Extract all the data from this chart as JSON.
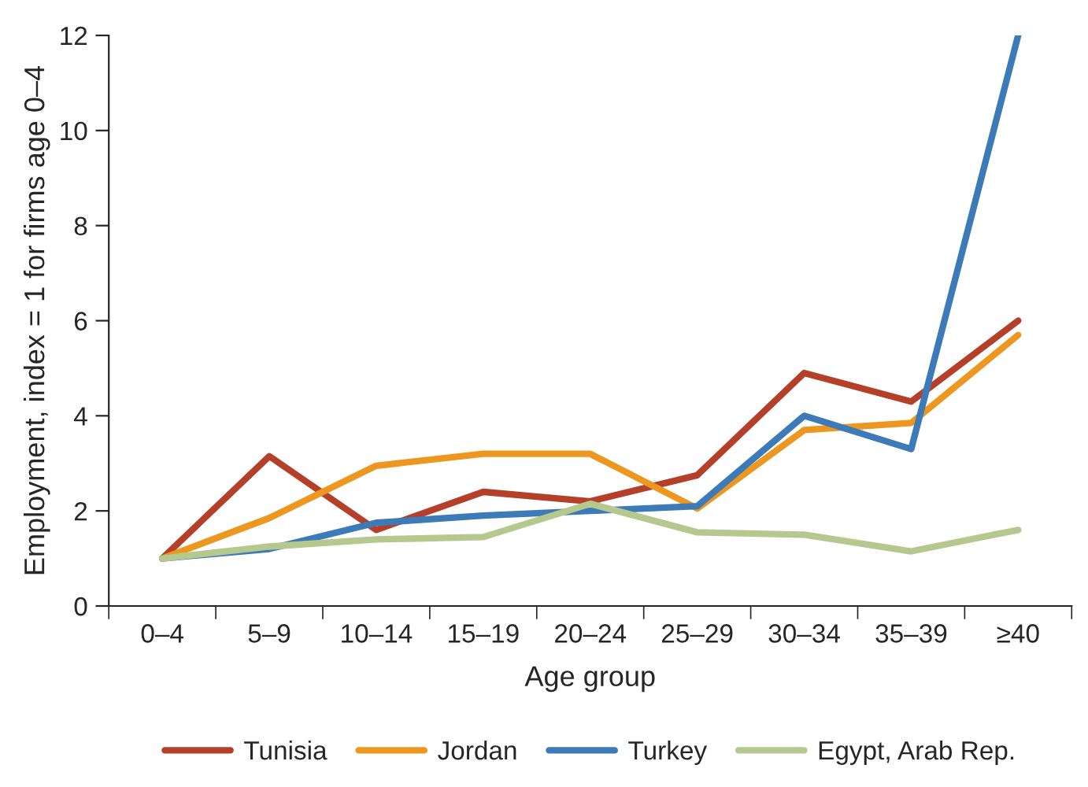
{
  "chart_data": {
    "type": "line",
    "xlabel": "Age group",
    "ylabel": "Employment, index = 1 for firms age 0–4",
    "categories": [
      "0–4",
      "5–9",
      "10–14",
      "15–19",
      "20–24",
      "25–29",
      "30–34",
      "35–39",
      "≥40"
    ],
    "series": [
      {
        "name": "Tunisia",
        "color": "#b5402a",
        "values": [
          1.0,
          3.15,
          1.6,
          2.4,
          2.2,
          2.75,
          4.9,
          4.3,
          6.0
        ]
      },
      {
        "name": "Jordan",
        "color": "#ec971f",
        "values": [
          1.0,
          1.85,
          2.95,
          3.2,
          3.2,
          2.05,
          3.7,
          3.85,
          5.7
        ]
      },
      {
        "name": "Turkey",
        "color": "#3d7ab8",
        "values": [
          1.0,
          1.2,
          1.75,
          1.9,
          2.0,
          2.1,
          4.0,
          3.3,
          12
        ]
      },
      {
        "name": "Egypt, Arab Rep.",
        "color": "#b5c98e",
        "values": [
          1.0,
          1.25,
          1.4,
          1.45,
          2.15,
          1.55,
          1.5,
          1.15,
          1.6
        ]
      }
    ],
    "ylim": [
      0,
      12
    ],
    "yticks": [
      0,
      2,
      4,
      6,
      8,
      10,
      12
    ],
    "grid": false,
    "legend": "bottom",
    "line_style": "solid",
    "marker": "none"
  }
}
